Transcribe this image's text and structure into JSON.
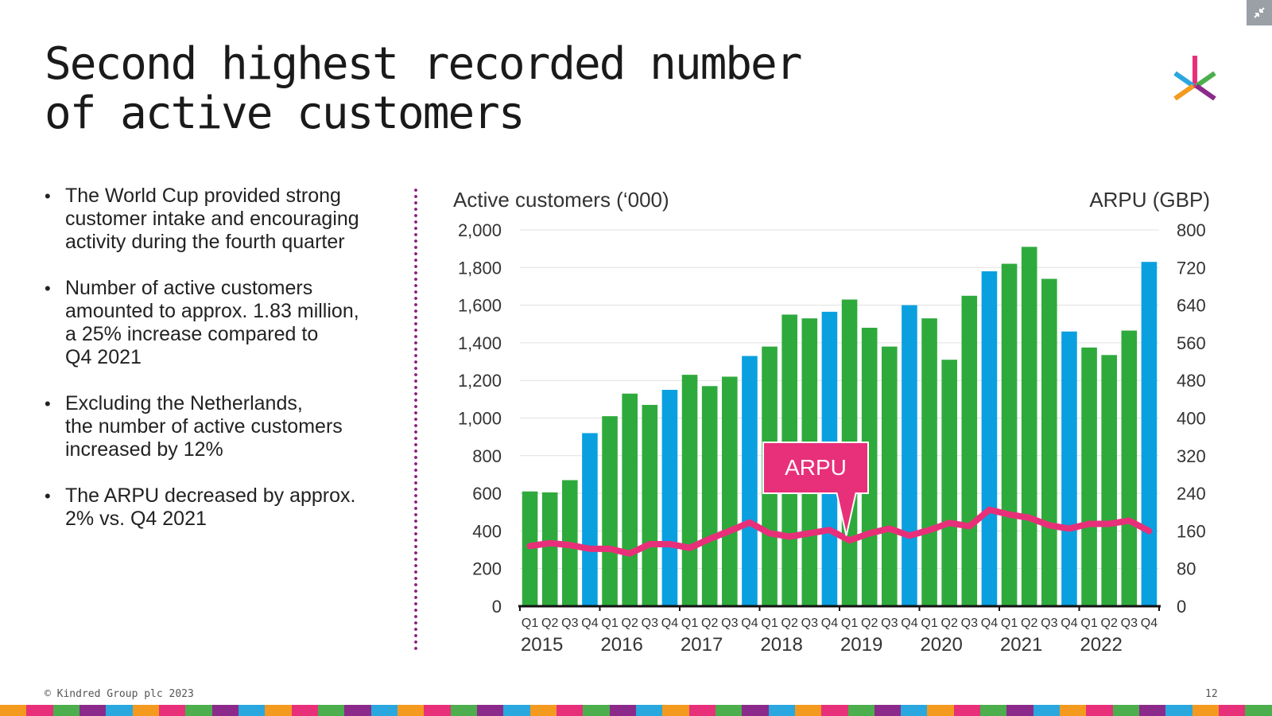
{
  "slide": {
    "title": "Second highest recorded number\nof active customers",
    "bullets": [
      "The World Cup provided strong\ncustomer intake and encouraging\nactivity during the fourth quarter",
      "Number of active customers\namounted to approx. 1.83 million,\na 25% increase compared to\nQ4 2021",
      "Excluding the Netherlands,\nthe number of active customers\nincreased by 12%",
      "The ARPU decreased by approx.\n2% vs. Q4 2021"
    ],
    "footer_copyright": "© Kindred Group plc 2023",
    "page_number": "12",
    "logo_icon": "kindred-k-logo-icon",
    "corner_icon": "collapse-arrows-icon"
  },
  "colors": {
    "green": "#2eaa3c",
    "blue": "#0aa0e0",
    "arpu_line": "#e8307a",
    "grid": "#e0e0e0",
    "divider": "#8b1e7e",
    "stripe": [
      "#f39a1f",
      "#e8307a",
      "#4cae4c",
      "#8b2a8a",
      "#2aa7df",
      "#f39a1f",
      "#e8307a",
      "#4cae4c",
      "#8b2a8a",
      "#2aa7df",
      "#f39a1f",
      "#e8307a",
      "#4cae4c",
      "#8b2a8a",
      "#2aa7df",
      "#f39a1f",
      "#e8307a",
      "#4cae4c",
      "#8b2a8a",
      "#2aa7df",
      "#f39a1f",
      "#e8307a",
      "#4cae4c",
      "#8b2a8a",
      "#2aa7df",
      "#f39a1f",
      "#e8307a",
      "#4cae4c",
      "#8b2a8a",
      "#2aa7df",
      "#f39a1f",
      "#e8307a",
      "#4cae4c",
      "#8b2a8a",
      "#2aa7df",
      "#f39a1f",
      "#e8307a",
      "#4cae4c",
      "#8b2a8a",
      "#2aa7df",
      "#f39a1f",
      "#e8307a",
      "#4cae4c",
      "#8b2a8a",
      "#2aa7df",
      "#f39a1f",
      "#e8307a",
      "#4cae4c"
    ]
  },
  "chart_data": {
    "type": "bar",
    "ylabel": "Active customers (‘000)",
    "y2label": "ARPU (GBP)",
    "ylim": [
      0,
      2000
    ],
    "y2lim": [
      0,
      800
    ],
    "yticks": [
      "0",
      "200",
      "400",
      "600",
      "800",
      "1,000",
      "1,200",
      "1,400",
      "1,600",
      "1,800",
      "2,000"
    ],
    "y2ticks": [
      "0",
      "80",
      "160",
      "240",
      "320",
      "400",
      "480",
      "560",
      "640",
      "720",
      "800"
    ],
    "grid": true,
    "years": [
      "2015",
      "2016",
      "2017",
      "2018",
      "2019",
      "2020",
      "2021",
      "2022"
    ],
    "quarters": [
      "Q1",
      "Q2",
      "Q3",
      "Q4"
    ],
    "categories": [
      "Q1 2015",
      "Q2 2015",
      "Q3 2015",
      "Q4 2015",
      "Q1 2016",
      "Q2 2016",
      "Q3 2016",
      "Q4 2016",
      "Q1 2017",
      "Q2 2017",
      "Q3 2017",
      "Q4 2017",
      "Q1 2018",
      "Q2 2018",
      "Q3 2018",
      "Q4 2018",
      "Q1 2019",
      "Q2 2019",
      "Q3 2019",
      "Q4 2019",
      "Q1 2020",
      "Q2 2020",
      "Q3 2020",
      "Q4 2020",
      "Q1 2021",
      "Q2 2021",
      "Q3 2021",
      "Q4 2021",
      "Q1 2022",
      "Q2 2022",
      "Q3 2022",
      "Q4 2022"
    ],
    "series": [
      {
        "type": "bar",
        "values": [
          610,
          605,
          670,
          920,
          1010,
          1130,
          1070,
          1150,
          1230,
          1170,
          1220,
          1330,
          1380,
          1550,
          1530,
          1565,
          1630,
          1480,
          1380,
          1600,
          1530,
          1310,
          1650,
          1780,
          1820,
          1910,
          1740,
          1460,
          1375,
          1335,
          1465,
          1830
        ],
        "highlight_q4": true
      },
      {
        "name": "ARPU",
        "type": "line",
        "axis": "right",
        "values": [
          128,
          134,
          130,
          122,
          122,
          112,
          132,
          132,
          124,
          143,
          160,
          178,
          155,
          148,
          155,
          162,
          140,
          155,
          165,
          150,
          162,
          177,
          170,
          205,
          195,
          188,
          172,
          165,
          175,
          175,
          182,
          160
        ]
      }
    ],
    "callout": {
      "label": "ARPU",
      "points_to": "Q1 2019"
    }
  }
}
